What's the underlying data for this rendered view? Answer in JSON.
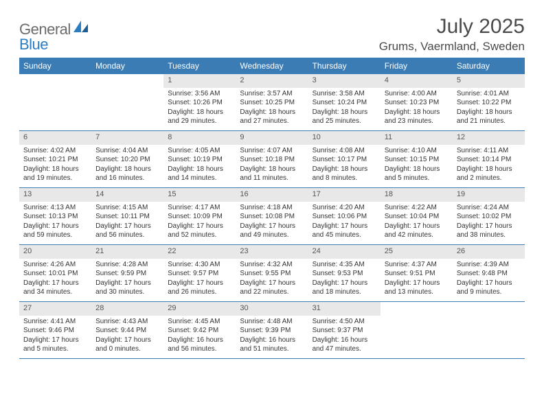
{
  "logo": {
    "text1": "General",
    "text2": "Blue"
  },
  "title": "July 2025",
  "location": "Grums, Vaermland, Sweden",
  "colors": {
    "header_bar": "#3b7cb5",
    "date_bg": "#e8e8e8",
    "text": "#333333",
    "logo_gray": "#6b6b6b",
    "logo_blue": "#2b7cc0"
  },
  "day_names": [
    "Sunday",
    "Monday",
    "Tuesday",
    "Wednesday",
    "Thursday",
    "Friday",
    "Saturday"
  ],
  "weeks": [
    [
      {
        "date": "",
        "sunrise": "",
        "sunset": "",
        "daylight": ""
      },
      {
        "date": "",
        "sunrise": "",
        "sunset": "",
        "daylight": ""
      },
      {
        "date": "1",
        "sunrise": "Sunrise: 3:56 AM",
        "sunset": "Sunset: 10:26 PM",
        "daylight": "Daylight: 18 hours and 29 minutes."
      },
      {
        "date": "2",
        "sunrise": "Sunrise: 3:57 AM",
        "sunset": "Sunset: 10:25 PM",
        "daylight": "Daylight: 18 hours and 27 minutes."
      },
      {
        "date": "3",
        "sunrise": "Sunrise: 3:58 AM",
        "sunset": "Sunset: 10:24 PM",
        "daylight": "Daylight: 18 hours and 25 minutes."
      },
      {
        "date": "4",
        "sunrise": "Sunrise: 4:00 AM",
        "sunset": "Sunset: 10:23 PM",
        "daylight": "Daylight: 18 hours and 23 minutes."
      },
      {
        "date": "5",
        "sunrise": "Sunrise: 4:01 AM",
        "sunset": "Sunset: 10:22 PM",
        "daylight": "Daylight: 18 hours and 21 minutes."
      }
    ],
    [
      {
        "date": "6",
        "sunrise": "Sunrise: 4:02 AM",
        "sunset": "Sunset: 10:21 PM",
        "daylight": "Daylight: 18 hours and 19 minutes."
      },
      {
        "date": "7",
        "sunrise": "Sunrise: 4:04 AM",
        "sunset": "Sunset: 10:20 PM",
        "daylight": "Daylight: 18 hours and 16 minutes."
      },
      {
        "date": "8",
        "sunrise": "Sunrise: 4:05 AM",
        "sunset": "Sunset: 10:19 PM",
        "daylight": "Daylight: 18 hours and 14 minutes."
      },
      {
        "date": "9",
        "sunrise": "Sunrise: 4:07 AM",
        "sunset": "Sunset: 10:18 PM",
        "daylight": "Daylight: 18 hours and 11 minutes."
      },
      {
        "date": "10",
        "sunrise": "Sunrise: 4:08 AM",
        "sunset": "Sunset: 10:17 PM",
        "daylight": "Daylight: 18 hours and 8 minutes."
      },
      {
        "date": "11",
        "sunrise": "Sunrise: 4:10 AM",
        "sunset": "Sunset: 10:15 PM",
        "daylight": "Daylight: 18 hours and 5 minutes."
      },
      {
        "date": "12",
        "sunrise": "Sunrise: 4:11 AM",
        "sunset": "Sunset: 10:14 PM",
        "daylight": "Daylight: 18 hours and 2 minutes."
      }
    ],
    [
      {
        "date": "13",
        "sunrise": "Sunrise: 4:13 AM",
        "sunset": "Sunset: 10:13 PM",
        "daylight": "Daylight: 17 hours and 59 minutes."
      },
      {
        "date": "14",
        "sunrise": "Sunrise: 4:15 AM",
        "sunset": "Sunset: 10:11 PM",
        "daylight": "Daylight: 17 hours and 56 minutes."
      },
      {
        "date": "15",
        "sunrise": "Sunrise: 4:17 AM",
        "sunset": "Sunset: 10:09 PM",
        "daylight": "Daylight: 17 hours and 52 minutes."
      },
      {
        "date": "16",
        "sunrise": "Sunrise: 4:18 AM",
        "sunset": "Sunset: 10:08 PM",
        "daylight": "Daylight: 17 hours and 49 minutes."
      },
      {
        "date": "17",
        "sunrise": "Sunrise: 4:20 AM",
        "sunset": "Sunset: 10:06 PM",
        "daylight": "Daylight: 17 hours and 45 minutes."
      },
      {
        "date": "18",
        "sunrise": "Sunrise: 4:22 AM",
        "sunset": "Sunset: 10:04 PM",
        "daylight": "Daylight: 17 hours and 42 minutes."
      },
      {
        "date": "19",
        "sunrise": "Sunrise: 4:24 AM",
        "sunset": "Sunset: 10:02 PM",
        "daylight": "Daylight: 17 hours and 38 minutes."
      }
    ],
    [
      {
        "date": "20",
        "sunrise": "Sunrise: 4:26 AM",
        "sunset": "Sunset: 10:01 PM",
        "daylight": "Daylight: 17 hours and 34 minutes."
      },
      {
        "date": "21",
        "sunrise": "Sunrise: 4:28 AM",
        "sunset": "Sunset: 9:59 PM",
        "daylight": "Daylight: 17 hours and 30 minutes."
      },
      {
        "date": "22",
        "sunrise": "Sunrise: 4:30 AM",
        "sunset": "Sunset: 9:57 PM",
        "daylight": "Daylight: 17 hours and 26 minutes."
      },
      {
        "date": "23",
        "sunrise": "Sunrise: 4:32 AM",
        "sunset": "Sunset: 9:55 PM",
        "daylight": "Daylight: 17 hours and 22 minutes."
      },
      {
        "date": "24",
        "sunrise": "Sunrise: 4:35 AM",
        "sunset": "Sunset: 9:53 PM",
        "daylight": "Daylight: 17 hours and 18 minutes."
      },
      {
        "date": "25",
        "sunrise": "Sunrise: 4:37 AM",
        "sunset": "Sunset: 9:51 PM",
        "daylight": "Daylight: 17 hours and 13 minutes."
      },
      {
        "date": "26",
        "sunrise": "Sunrise: 4:39 AM",
        "sunset": "Sunset: 9:48 PM",
        "daylight": "Daylight: 17 hours and 9 minutes."
      }
    ],
    [
      {
        "date": "27",
        "sunrise": "Sunrise: 4:41 AM",
        "sunset": "Sunset: 9:46 PM",
        "daylight": "Daylight: 17 hours and 5 minutes."
      },
      {
        "date": "28",
        "sunrise": "Sunrise: 4:43 AM",
        "sunset": "Sunset: 9:44 PM",
        "daylight": "Daylight: 17 hours and 0 minutes."
      },
      {
        "date": "29",
        "sunrise": "Sunrise: 4:45 AM",
        "sunset": "Sunset: 9:42 PM",
        "daylight": "Daylight: 16 hours and 56 minutes."
      },
      {
        "date": "30",
        "sunrise": "Sunrise: 4:48 AM",
        "sunset": "Sunset: 9:39 PM",
        "daylight": "Daylight: 16 hours and 51 minutes."
      },
      {
        "date": "31",
        "sunrise": "Sunrise: 4:50 AM",
        "sunset": "Sunset: 9:37 PM",
        "daylight": "Daylight: 16 hours and 47 minutes."
      },
      {
        "date": "",
        "sunrise": "",
        "sunset": "",
        "daylight": ""
      },
      {
        "date": "",
        "sunrise": "",
        "sunset": "",
        "daylight": ""
      }
    ]
  ]
}
